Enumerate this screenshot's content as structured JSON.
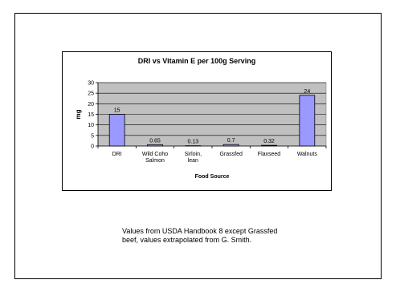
{
  "chart_data": {
    "type": "bar",
    "title": "DRI vs Vitamin E per 100g Serving",
    "xlabel": "Food Source",
    "ylabel": "mg",
    "ylim": [
      0,
      30
    ],
    "yticks": [
      0,
      5,
      10,
      15,
      20,
      25,
      30
    ],
    "grid": true,
    "categories": [
      "DRI",
      "Wild Coho\nSalmon",
      "Sirloin,\nlean",
      "Grassfed",
      "Flaxseed",
      "Walnuts"
    ],
    "values": [
      15,
      0.65,
      0.13,
      0.7,
      0.32,
      24
    ],
    "data_labels": [
      "15",
      "0.65",
      "0.13",
      "0.7",
      "0.32",
      "24"
    ],
    "colors": {
      "bar": "#9999ff",
      "plot_bg": "#c0c0c0"
    }
  },
  "caption": "Values from USDA Handbook 8 except Grassfed beef, values extrapolated from G. Smith."
}
